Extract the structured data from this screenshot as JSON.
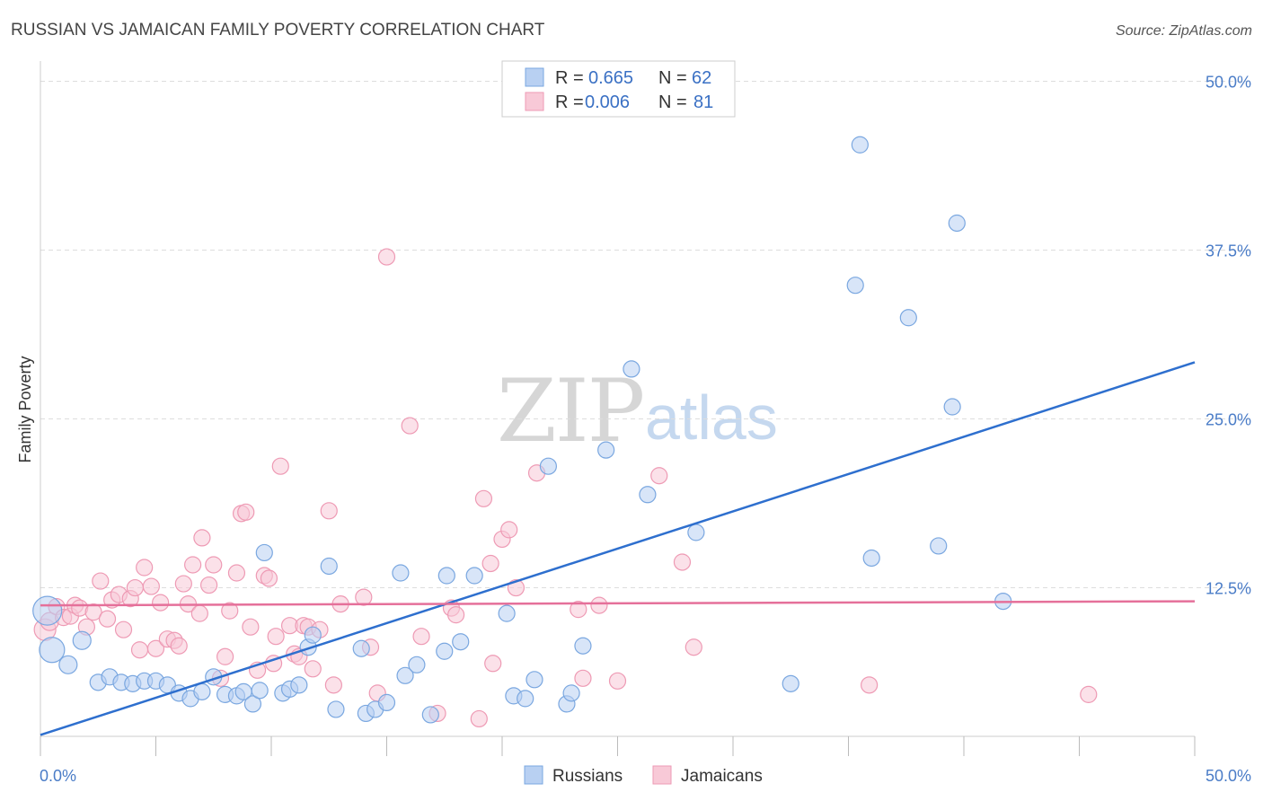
{
  "chart_data": {
    "type": "scatter",
    "title": "RUSSIAN VS JAMAICAN FAMILY POVERTY CORRELATION CHART",
    "source": "Source: ZipAtlas.com",
    "xlabel": "",
    "ylabel": "Family Poverty",
    "xlim": [
      0,
      50
    ],
    "ylim": [
      1.5,
      51.5
    ],
    "y_ticks": [
      {
        "value": 50,
        "label": "50.0%"
      },
      {
        "value": 37.5,
        "label": "37.5%"
      },
      {
        "value": 25,
        "label": "25.0%"
      },
      {
        "value": 12.5,
        "label": "12.5%"
      }
    ],
    "x_tick_labels": {
      "min": "0.0%",
      "max": "50.0%"
    },
    "x_minor_ticks": [
      0,
      5,
      10,
      15,
      20,
      25,
      30,
      35,
      40,
      45,
      50
    ],
    "legend": [
      {
        "series": "Russians",
        "r_label": "R =",
        "r_value": "0.665",
        "n_label": "N =",
        "n_value": "62"
      },
      {
        "series": "Jamaicans",
        "r_label": "R =",
        "r_value": "0.006",
        "n_label": "N =",
        "n_value": "81"
      }
    ],
    "watermark": {
      "zip": "ZIP",
      "atlas": "atlas"
    },
    "series": [
      {
        "name": "Russians",
        "color": "#7aa7e0",
        "fill": "#b8d0f2",
        "trend_color": "#2e6fce",
        "trend": {
          "x": [
            0,
            50
          ],
          "y": [
            1.6,
            29.2
          ]
        },
        "points": [
          [
            0.3,
            10.8,
            16
          ],
          [
            0.5,
            7.9,
            14
          ],
          [
            1.2,
            6.8,
            10
          ],
          [
            1.8,
            8.6,
            10
          ],
          [
            2.5,
            5.5,
            9
          ],
          [
            3.0,
            5.9,
            9
          ],
          [
            3.5,
            5.5,
            9
          ],
          [
            4.0,
            5.4,
            9
          ],
          [
            4.5,
            5.6,
            9
          ],
          [
            5.0,
            5.6,
            9
          ],
          [
            5.5,
            5.3,
            9
          ],
          [
            6.0,
            4.7,
            9
          ],
          [
            6.5,
            4.3,
            9
          ],
          [
            7.0,
            4.8,
            9
          ],
          [
            7.5,
            5.9,
            9
          ],
          [
            8.0,
            4.6,
            9
          ],
          [
            8.5,
            4.5,
            9
          ],
          [
            8.8,
            4.8,
            9
          ],
          [
            9.2,
            3.9,
            9
          ],
          [
            9.5,
            4.9,
            9
          ],
          [
            9.7,
            15.1,
            9
          ],
          [
            10.5,
            4.7,
            9
          ],
          [
            10.8,
            5.0,
            9
          ],
          [
            11.2,
            5.3,
            9
          ],
          [
            11.6,
            8.1,
            9
          ],
          [
            11.8,
            9.0,
            9
          ],
          [
            12.5,
            14.1,
            9
          ],
          [
            12.8,
            3.5,
            9
          ],
          [
            13.9,
            8.0,
            9
          ],
          [
            14.1,
            3.2,
            9
          ],
          [
            14.5,
            3.5,
            9
          ],
          [
            15.0,
            4.0,
            9
          ],
          [
            15.6,
            13.6,
            9
          ],
          [
            15.8,
            6.0,
            9
          ],
          [
            16.3,
            6.8,
            9
          ],
          [
            16.9,
            3.1,
            9
          ],
          [
            17.5,
            7.8,
            9
          ],
          [
            17.6,
            13.4,
            9
          ],
          [
            18.2,
            8.5,
            9
          ],
          [
            18.8,
            13.4,
            9
          ],
          [
            20.2,
            10.6,
            9
          ],
          [
            20.5,
            4.5,
            9
          ],
          [
            21.0,
            4.3,
            9
          ],
          [
            21.4,
            5.7,
            9
          ],
          [
            22.0,
            21.5,
            9
          ],
          [
            22.8,
            3.9,
            9
          ],
          [
            23.0,
            4.7,
            9
          ],
          [
            23.5,
            8.2,
            9
          ],
          [
            24.5,
            22.7,
            9
          ],
          [
            25.6,
            28.7,
            9
          ],
          [
            26.3,
            19.4,
            9
          ],
          [
            28.4,
            16.6,
            9
          ],
          [
            32.5,
            5.4,
            9
          ],
          [
            35.3,
            34.9,
            9
          ],
          [
            35.5,
            45.3,
            9
          ],
          [
            36.0,
            14.7,
            9
          ],
          [
            37.6,
            32.5,
            9
          ],
          [
            38.9,
            15.6,
            9
          ],
          [
            39.5,
            25.9,
            9
          ],
          [
            39.7,
            39.5,
            9
          ],
          [
            41.7,
            11.5,
            9
          ]
        ]
      },
      {
        "name": "Jamaicans",
        "color": "#ee9ab4",
        "fill": "#f8c9d7",
        "trend_color": "#e5709a",
        "trend": {
          "x": [
            0,
            50
          ],
          "y": [
            11.2,
            11.5
          ]
        },
        "points": [
          [
            0.2,
            9.4,
            12
          ],
          [
            0.4,
            10.0,
            10
          ],
          [
            0.7,
            11.1,
            9
          ],
          [
            1.0,
            10.3,
            9
          ],
          [
            1.3,
            10.4,
            9
          ],
          [
            1.5,
            11.2,
            9
          ],
          [
            1.7,
            11.0,
            9
          ],
          [
            2.0,
            9.6,
            9
          ],
          [
            2.3,
            10.7,
            9
          ],
          [
            2.6,
            13.0,
            9
          ],
          [
            2.9,
            10.2,
            9
          ],
          [
            3.1,
            11.6,
            9
          ],
          [
            3.4,
            12.0,
            9
          ],
          [
            3.6,
            9.4,
            9
          ],
          [
            3.9,
            11.7,
            9
          ],
          [
            4.1,
            12.5,
            9
          ],
          [
            4.3,
            7.9,
            9
          ],
          [
            4.5,
            14.0,
            9
          ],
          [
            4.8,
            12.6,
            9
          ],
          [
            5.0,
            8.0,
            9
          ],
          [
            5.2,
            11.4,
            9
          ],
          [
            5.5,
            8.7,
            9
          ],
          [
            5.8,
            8.6,
            9
          ],
          [
            6.0,
            8.2,
            9
          ],
          [
            6.2,
            12.8,
            9
          ],
          [
            6.4,
            11.3,
            9
          ],
          [
            6.6,
            14.2,
            9
          ],
          [
            6.9,
            10.6,
            9
          ],
          [
            7.0,
            16.2,
            9
          ],
          [
            7.3,
            12.7,
            9
          ],
          [
            7.5,
            14.2,
            9
          ],
          [
            7.8,
            5.8,
            9
          ],
          [
            8.0,
            7.4,
            9
          ],
          [
            8.2,
            10.8,
            9
          ],
          [
            8.5,
            13.6,
            9
          ],
          [
            8.7,
            18.0,
            9
          ],
          [
            8.9,
            18.1,
            9
          ],
          [
            9.1,
            9.6,
            9
          ],
          [
            9.4,
            6.4,
            9
          ],
          [
            9.7,
            13.4,
            9
          ],
          [
            9.9,
            13.2,
            9
          ],
          [
            10.1,
            6.9,
            9
          ],
          [
            10.2,
            8.9,
            9
          ],
          [
            10.4,
            21.5,
            9
          ],
          [
            10.8,
            9.7,
            9
          ],
          [
            11.0,
            7.6,
            9
          ],
          [
            11.2,
            7.4,
            9
          ],
          [
            11.4,
            9.7,
            9
          ],
          [
            11.6,
            9.6,
            9
          ],
          [
            11.8,
            6.5,
            9
          ],
          [
            12.1,
            9.4,
            9
          ],
          [
            12.5,
            18.2,
            9
          ],
          [
            12.7,
            5.3,
            9
          ],
          [
            13.0,
            11.3,
            9
          ],
          [
            14.0,
            11.8,
            9
          ],
          [
            14.3,
            8.1,
            9
          ],
          [
            14.6,
            4.7,
            9
          ],
          [
            15.0,
            37.0,
            9
          ],
          [
            16.0,
            24.5,
            9
          ],
          [
            16.5,
            8.9,
            9
          ],
          [
            17.2,
            3.2,
            9
          ],
          [
            17.8,
            11.0,
            9
          ],
          [
            18.0,
            10.5,
            9
          ],
          [
            19.0,
            2.8,
            9
          ],
          [
            19.2,
            19.1,
            9
          ],
          [
            19.5,
            14.3,
            9
          ],
          [
            19.6,
            6.9,
            9
          ],
          [
            20.0,
            16.1,
            9
          ],
          [
            20.3,
            16.8,
            9
          ],
          [
            20.6,
            12.5,
            9
          ],
          [
            21.5,
            21.0,
            9
          ],
          [
            23.3,
            10.9,
            9
          ],
          [
            23.5,
            5.8,
            9
          ],
          [
            24.2,
            11.2,
            9
          ],
          [
            25.0,
            5.6,
            9
          ],
          [
            26.8,
            20.8,
            9
          ],
          [
            27.8,
            14.4,
            9
          ],
          [
            28.3,
            8.1,
            9
          ],
          [
            35.9,
            5.3,
            9
          ],
          [
            45.4,
            4.6,
            9
          ]
        ]
      }
    ]
  }
}
